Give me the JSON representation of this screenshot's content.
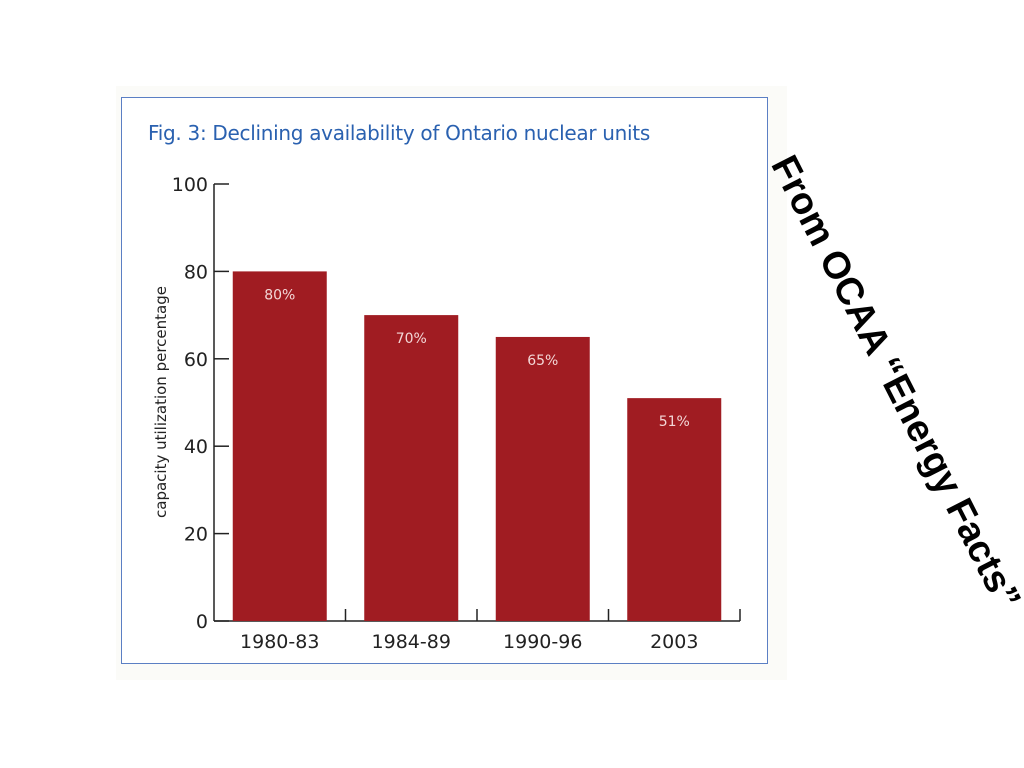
{
  "figure": {
    "title": "Fig. 3: Declining availability of Ontario nuclear units"
  },
  "side_caption": "From OCAA “Energy Facts”",
  "colors": {
    "bar": "#a01c22",
    "frame": "#5b7fc4",
    "title": "#2a61b0",
    "axis": "#222222",
    "data_label": "#f3d7d7"
  },
  "chart_data": {
    "type": "bar",
    "title": "Fig. 3: Declining availability of Ontario nuclear units",
    "xlabel": "",
    "ylabel": "capacity utilization percentage",
    "categories": [
      "1980-83",
      "1984-89",
      "1990-96",
      "2003"
    ],
    "values": [
      80,
      70,
      65,
      51
    ],
    "data_labels": [
      "80%",
      "70%",
      "65%",
      "51%"
    ],
    "ylim": [
      0,
      100
    ],
    "yticks": [
      0,
      20,
      40,
      60,
      80,
      100
    ],
    "grid": false,
    "legend": "none"
  }
}
